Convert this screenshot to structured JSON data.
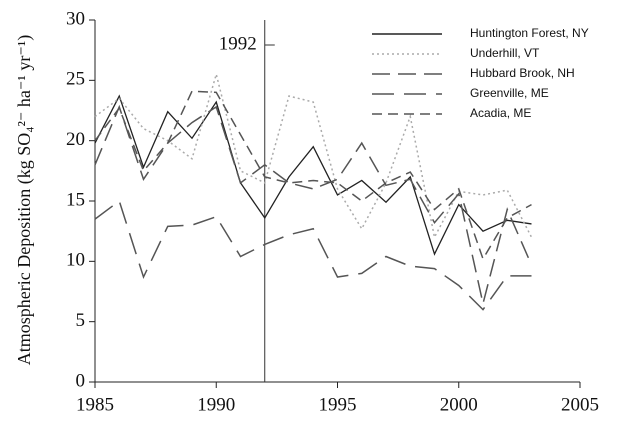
{
  "chart_data": {
    "type": "line",
    "y_label": "Atmospheric Deposition (kg SO₄²⁻ ha⁻¹ yr⁻¹)",
    "x": [
      1985,
      1986,
      1987,
      1988,
      1989,
      1990,
      1991,
      1992,
      1993,
      1994,
      1995,
      1996,
      1997,
      1998,
      1999,
      2000,
      2001,
      2002,
      2003
    ],
    "series": [
      {
        "name": "Huntington Forest, NY",
        "color": "#222222",
        "linestyle": "solid",
        "values": [
          19.8,
          23.7,
          17.8,
          22.4,
          20.2,
          23.2,
          16.5,
          13.6,
          17,
          19.5,
          15.5,
          16.7,
          14.9,
          17,
          10.6,
          14.7,
          12.5,
          13.4,
          13.1
        ]
      },
      {
        "name": "Underhill, VT",
        "color": "#aaaaaa",
        "linestyle": "dotted",
        "values": [
          22,
          23.5,
          21,
          20,
          18.5,
          25.5,
          17.5,
          16.5,
          23.7,
          23.2,
          16,
          12.7,
          16.5,
          22,
          12,
          15.8,
          15.5,
          15.9,
          12
        ]
      },
      {
        "name": "Hubbard Brook, NH",
        "color": "#555555",
        "linestyle": "longdash",
        "values": [
          18,
          22.8,
          16.8,
          19.8,
          21.5,
          22.8,
          16.5,
          18,
          16.5,
          16,
          16.8,
          19.8,
          16.3,
          16.8,
          13.2,
          15.6,
          6.5,
          14.3,
          9.7
        ]
      },
      {
        "name": "Greenville, ME",
        "color": "#555555",
        "linestyle": "dashdot",
        "values": [
          13.5,
          15,
          8.7,
          12.9,
          13,
          13.7,
          10.4,
          11.4,
          12.2,
          12.7,
          8.7,
          9,
          10.4,
          9.6,
          9.4,
          8,
          6,
          8.8,
          8.8
        ]
      },
      {
        "name": "Acadia, ME",
        "color": "#555555",
        "linestyle": "dashed",
        "values": [
          20,
          22.7,
          17.5,
          19.8,
          24.1,
          24,
          20.5,
          17,
          16.5,
          16.7,
          16.5,
          15,
          16.5,
          17.4,
          14.3,
          16,
          10.2,
          13.6,
          14.7
        ]
      }
    ],
    "vline": 1992,
    "annotation": "1992",
    "xlim": [
      1985,
      2005
    ],
    "xticks": [
      1985,
      1990,
      1995,
      2000,
      2005
    ],
    "ylim": [
      0,
      30
    ],
    "yticks": [
      0,
      5,
      10,
      15,
      20,
      25,
      30
    ],
    "legend": "upper right",
    "grid": false
  }
}
